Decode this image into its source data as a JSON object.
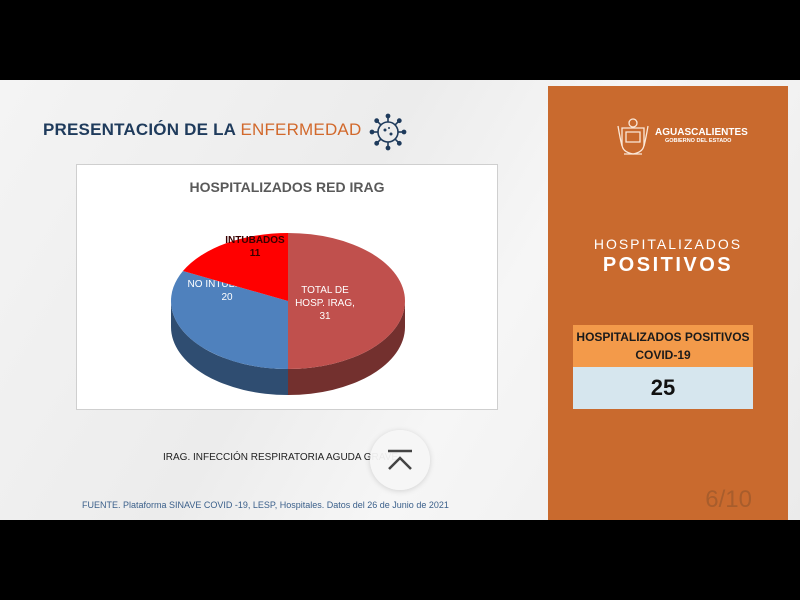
{
  "slide": {
    "title_main": "PRESENTACIÓN DE LA ",
    "title_accent": "ENFERMEDAD",
    "note": "IRAG. INFECCIÓN RESPIRATORIA AGUDA GRAVE",
    "source": "FUENTE. Plataforma SINAVE COVID -19, LESP, Hospitales. Datos del 26 de Junio de 2021"
  },
  "chart_data": {
    "type": "pie",
    "title": "HOSPITALIZADOS RED IRAG",
    "slices": [
      {
        "label": "TOTAL DE HOSP. IRAG,",
        "value": 31,
        "color": "#c0504d"
      },
      {
        "label": "NO INTUBADOS,",
        "value": 20,
        "color": "#4f81bd"
      },
      {
        "label": "INTUBADOS",
        "value": 11,
        "color": "#ff0000"
      }
    ]
  },
  "panel": {
    "logo_line1": "AGUASCALIENTES",
    "logo_line2": "GOBIERNO DEL ESTADO",
    "heading1": "HOSPITALIZADOS",
    "heading2": "POSITIVOS",
    "card_label": "HOSPITALIZADOS POSITIVOS COVID-19",
    "card_value": "25",
    "page_indicator": "6/10",
    "color": "#c96a2e"
  },
  "icons": {
    "virus": "virus-icon",
    "scroll": "chevron-up-to-top-icon"
  }
}
